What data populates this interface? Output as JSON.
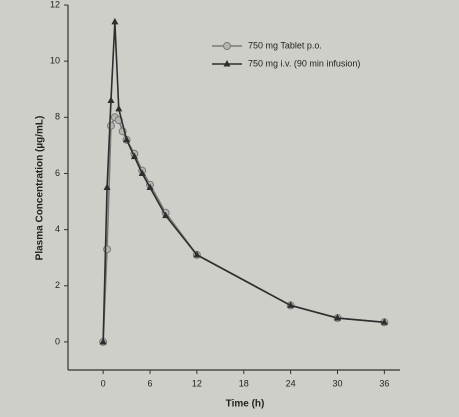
{
  "chart_data": {
    "type": "line",
    "x_label": "Time (h)",
    "y_label": "Plasma Concentration (µg/mL)",
    "xlim": [
      -4.5,
      38
    ],
    "ylim": [
      -1,
      12
    ],
    "xticks": [
      0,
      6,
      12,
      18,
      24,
      30,
      36
    ],
    "yticks": [
      0,
      2,
      4,
      6,
      8,
      10,
      12
    ],
    "legend": "top-right",
    "series": [
      {
        "name": "750 mg Tablet p.o.",
        "color": "#7a7a7a",
        "marker": "circle",
        "x": [
          0,
          0.5,
          1,
          1.5,
          2,
          2.5,
          3,
          4,
          5,
          6,
          8,
          12,
          24,
          30,
          36
        ],
        "values": [
          0,
          3.3,
          7.7,
          8.0,
          7.9,
          7.5,
          7.2,
          6.7,
          6.1,
          5.6,
          4.6,
          3.1,
          1.3,
          0.85,
          0.7
        ]
      },
      {
        "name": "750 mg i.v. (90 min infusion)",
        "color": "#2e2e2e",
        "marker": "triangle",
        "x": [
          0,
          0.5,
          1,
          1.5,
          2,
          3,
          4,
          5,
          6,
          8,
          12,
          24,
          30,
          36
        ],
        "values": [
          0,
          5.5,
          8.6,
          11.4,
          8.3,
          7.2,
          6.6,
          6.0,
          5.5,
          4.5,
          3.1,
          1.3,
          0.85,
          0.7
        ]
      }
    ]
  }
}
